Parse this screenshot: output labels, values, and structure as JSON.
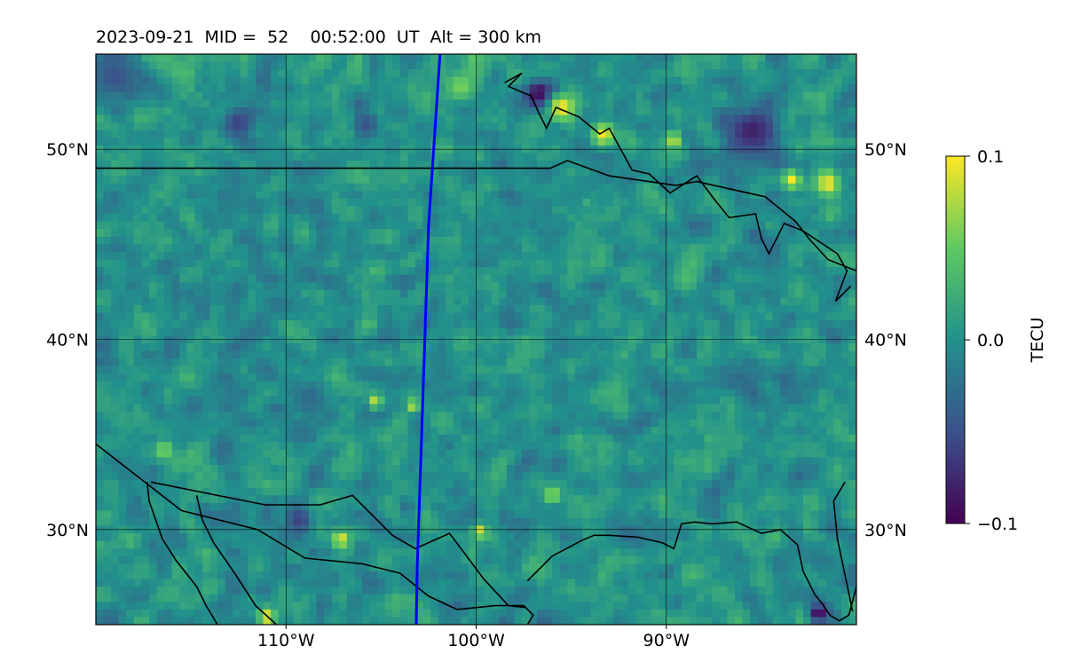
{
  "header": {
    "title": "2023-09-21  MID =  52    00:52:00  UT  Alt = 300 km"
  },
  "chart_data": {
    "type": "heatmap",
    "title": "2023-09-21  MID =  52    00:52:00  UT  Alt = 300 km",
    "date": "2023-09-21",
    "mid": 52,
    "time_ut": "00:52:00",
    "altitude_km": 300,
    "map_extent": {
      "lon": [
        -120,
        -80
      ],
      "lat": [
        25,
        55
      ]
    },
    "x_ticks": [
      {
        "value": -110,
        "label": "110°W"
      },
      {
        "value": -100,
        "label": "100°W"
      },
      {
        "value": -90,
        "label": "90°W"
      }
    ],
    "y_ticks": [
      {
        "value": 30,
        "label": "30°N"
      },
      {
        "value": 40,
        "label": "40°N"
      },
      {
        "value": 50,
        "label": "50°N"
      }
    ],
    "grid": true,
    "terminator_line": {
      "color": "#0000ff",
      "lon": [
        -101.9,
        -102.1,
        -102.3,
        -102.5,
        -102.6,
        -102.7,
        -102.8,
        -102.9,
        -103.0,
        -103.1,
        -103.15
      ],
      "lat": [
        55,
        52,
        49,
        46,
        43,
        40,
        37,
        34,
        31,
        28,
        25
      ]
    },
    "colorbar": {
      "label": "TECU",
      "min": -0.1,
      "max": 0.1,
      "ticks": [
        {
          "value": 0.1,
          "label": "0.1"
        },
        {
          "value": 0.0,
          "label": "0.0"
        },
        {
          "value": -0.1,
          "label": "−0.1"
        }
      ],
      "colormap": "viridis",
      "colors": [
        "#440154",
        "#3b528b",
        "#21918c",
        "#5ec962",
        "#fde725"
      ]
    },
    "field": {
      "background_tecu": 0.0,
      "noise_amplitude_tecu": 0.035,
      "anomalies": [
        {
          "lon": -96.7,
          "lat": 52.9,
          "value": -0.1,
          "size_deg": 0.9
        },
        {
          "lon": -95.5,
          "lat": 52.2,
          "value": 0.1,
          "size_deg": 0.8
        },
        {
          "lon": -93.3,
          "lat": 50.8,
          "value": 0.1,
          "size_deg": 0.7
        },
        {
          "lon": -89.6,
          "lat": 50.5,
          "value": 0.09,
          "size_deg": 0.5
        },
        {
          "lon": -85.5,
          "lat": 51.0,
          "value": -0.08,
          "size_deg": 1.6
        },
        {
          "lon": -81.5,
          "lat": 48.2,
          "value": 0.1,
          "size_deg": 0.7
        },
        {
          "lon": -83.4,
          "lat": 48.4,
          "value": 0.1,
          "size_deg": 0.6
        },
        {
          "lon": -100.8,
          "lat": 53.3,
          "value": 0.06,
          "size_deg": 0.9
        },
        {
          "lon": -112.5,
          "lat": 51.4,
          "value": -0.06,
          "size_deg": 1.0
        },
        {
          "lon": -105.8,
          "lat": 51.3,
          "value": -0.05,
          "size_deg": 0.8
        },
        {
          "lon": -119,
          "lat": 53.8,
          "value": -0.05,
          "size_deg": 1.5
        },
        {
          "lon": -111.0,
          "lat": 25.4,
          "value": 0.1,
          "size_deg": 0.5
        },
        {
          "lon": -82.0,
          "lat": 25.6,
          "value": -0.1,
          "size_deg": 0.6
        },
        {
          "lon": -99.8,
          "lat": 29.9,
          "value": 0.09,
          "size_deg": 0.4
        },
        {
          "lon": -107.1,
          "lat": 29.5,
          "value": 0.09,
          "size_deg": 0.5
        },
        {
          "lon": -103.3,
          "lat": 36.5,
          "value": 0.08,
          "size_deg": 0.4
        },
        {
          "lon": -105.3,
          "lat": 36.7,
          "value": 0.09,
          "size_deg": 0.4
        },
        {
          "lon": -116.4,
          "lat": 34.2,
          "value": 0.07,
          "size_deg": 0.5
        },
        {
          "lon": -96.0,
          "lat": 31.8,
          "value": 0.08,
          "size_deg": 0.4
        },
        {
          "lon": -109.3,
          "lat": 30.5,
          "value": -0.06,
          "size_deg": 0.8
        }
      ]
    },
    "coastlines": [
      {
        "lon": [
          -120,
          -115.5,
          -111.5,
          -109,
          -106,
          -104,
          -102.5,
          -101,
          -99,
          -97.5,
          -97,
          -97.3
        ],
        "lat": [
          34.5,
          31,
          30,
          28.5,
          28.2,
          27.7,
          26.5,
          25.8,
          26,
          26,
          25.5,
          25
        ]
      },
      {
        "lon": [
          -117.3,
          -117.2,
          -116.5,
          -115.8,
          -114.7,
          -114.2,
          -113.6
        ],
        "lat": [
          32.5,
          31.5,
          29.5,
          28.4,
          27,
          26,
          25
        ]
      },
      {
        "lon": [
          -114.7,
          -114.4,
          -113.8,
          -112.7,
          -111.6,
          -110.5
        ],
        "lat": [
          31.8,
          30.5,
          29.3,
          27.7,
          26,
          25
        ]
      },
      {
        "lon": [
          -97.3,
          -96,
          -94.5,
          -93.8,
          -93,
          -91.5,
          -90.2,
          -89.6,
          -89.2,
          -88.5,
          -87.6,
          -86.3,
          -85,
          -84,
          -83.1,
          -82.8,
          -82.2,
          -81.8,
          -81.4,
          -80.9,
          -80.4,
          -80
        ],
        "lat": [
          27.3,
          28.6,
          29.4,
          29.7,
          29.7,
          29.6,
          29.3,
          29.0,
          30.3,
          30.4,
          30.3,
          30.4,
          29.8,
          30,
          29.2,
          27.8,
          26.6,
          26.1,
          25.5,
          25.2,
          25.5,
          27
        ]
      },
      {
        "lon": [
          -80.2,
          -81,
          -81.2,
          -80.6
        ],
        "lat": [
          25.7,
          29.5,
          31.5,
          32.5
        ]
      }
    ],
    "borders": [
      {
        "lon": [
          -120,
          -96.1,
          -95.2,
          -93,
          -89.5,
          -88.4,
          -84.8,
          -83.2,
          -82.5,
          -81.5,
          -80
        ],
        "lat": [
          49,
          49,
          49.4,
          48.6,
          48.1,
          48.3,
          47.5,
          46.2,
          45.3,
          44.2,
          43.6
        ]
      },
      {
        "lon": [
          -117.1,
          -111.1,
          -108.2,
          -106.5,
          -104.4,
          -103.2,
          -101.4,
          -99.6,
          -98.3,
          -97.4
        ],
        "lat": [
          32.5,
          31.3,
          31.3,
          31.8,
          29.7,
          29.0,
          29.8,
          27.4,
          26.0,
          25.9
        ]
      },
      {
        "lon": [
          -98.5,
          -97.6,
          -98.3,
          -97.1,
          -96.7,
          -96.3,
          -95.8,
          -94.6,
          -93.5,
          -93.0,
          -91.8,
          -90.9,
          -89.8,
          -88.4,
          -87.5,
          -86.7,
          -85.3,
          -85.0,
          -84.6,
          -83.8,
          -82.8,
          -81.0,
          -80.5,
          -81.1,
          -80.3
        ],
        "lat": [
          53.5,
          54.0,
          53.3,
          52.8,
          51.9,
          51.1,
          52.2,
          51.7,
          50.8,
          51.1,
          48.9,
          48.7,
          47.7,
          48.6,
          47.4,
          46.4,
          46.6,
          45.3,
          44.5,
          46.1,
          45.7,
          44.5,
          43.6,
          42.0,
          42.8
        ]
      }
    ]
  }
}
